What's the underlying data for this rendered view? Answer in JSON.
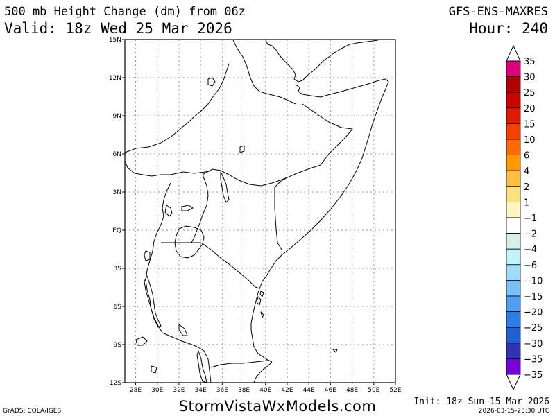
{
  "header": {
    "title": "500 mb Height Change (dm) from 06z",
    "model": "GFS-ENS-MAXRES",
    "valid": "Valid: 18z Wed 25 Mar 2026",
    "hour": "Hour: 240"
  },
  "axes": {
    "lat_labels": [
      "15N",
      "12N",
      "9N",
      "6N",
      "3N",
      "EQ",
      "3S",
      "6S",
      "9S",
      "12S"
    ],
    "lon_labels": [
      "28E",
      "30E",
      "32E",
      "34E",
      "36E",
      "38E",
      "40E",
      "42E",
      "44E",
      "46E",
      "48E",
      "50E",
      "52E"
    ]
  },
  "colorbar": {
    "bins": [
      {
        "label": "35",
        "color": "#e0007f"
      },
      {
        "label": "30",
        "color": "#b40000"
      },
      {
        "label": "25",
        "color": "#cf0000"
      },
      {
        "label": "20",
        "color": "#e31a00"
      },
      {
        "label": "15",
        "color": "#f54000"
      },
      {
        "label": "10",
        "color": "#ff6a00"
      },
      {
        "label": "6",
        "color": "#ff9a00"
      },
      {
        "label": "4",
        "color": "#ffc040"
      },
      {
        "label": "2",
        "color": "#ffe07f"
      },
      {
        "label": "1",
        "color": "#fff5c0"
      },
      {
        "label": "−1",
        "color": "#ffffff"
      },
      {
        "label": "−2",
        "color": "#d4f0e8"
      },
      {
        "label": "−4",
        "color": "#c0f5ff"
      },
      {
        "label": "−6",
        "color": "#a0dcff"
      },
      {
        "label": "−10",
        "color": "#78bff5"
      },
      {
        "label": "−15",
        "color": "#4f9ef0"
      },
      {
        "label": "−20",
        "color": "#2a7fe6"
      },
      {
        "label": "−25",
        "color": "#1e5fd4"
      },
      {
        "label": "−30",
        "color": "#3232b4"
      },
      {
        "label": "−35",
        "color": "#7800d8"
      }
    ],
    "top_arrow_color": "#ffffff",
    "bottom_arrow_color": "#ffffff"
  },
  "footer": {
    "brand": "StormVistaWxModels.com",
    "grads": "GrADS: COLA/IGES",
    "init": "Init: 18z Sun 15 Mar 2026",
    "stamp": "2026-03-15-23:30 UTC"
  }
}
